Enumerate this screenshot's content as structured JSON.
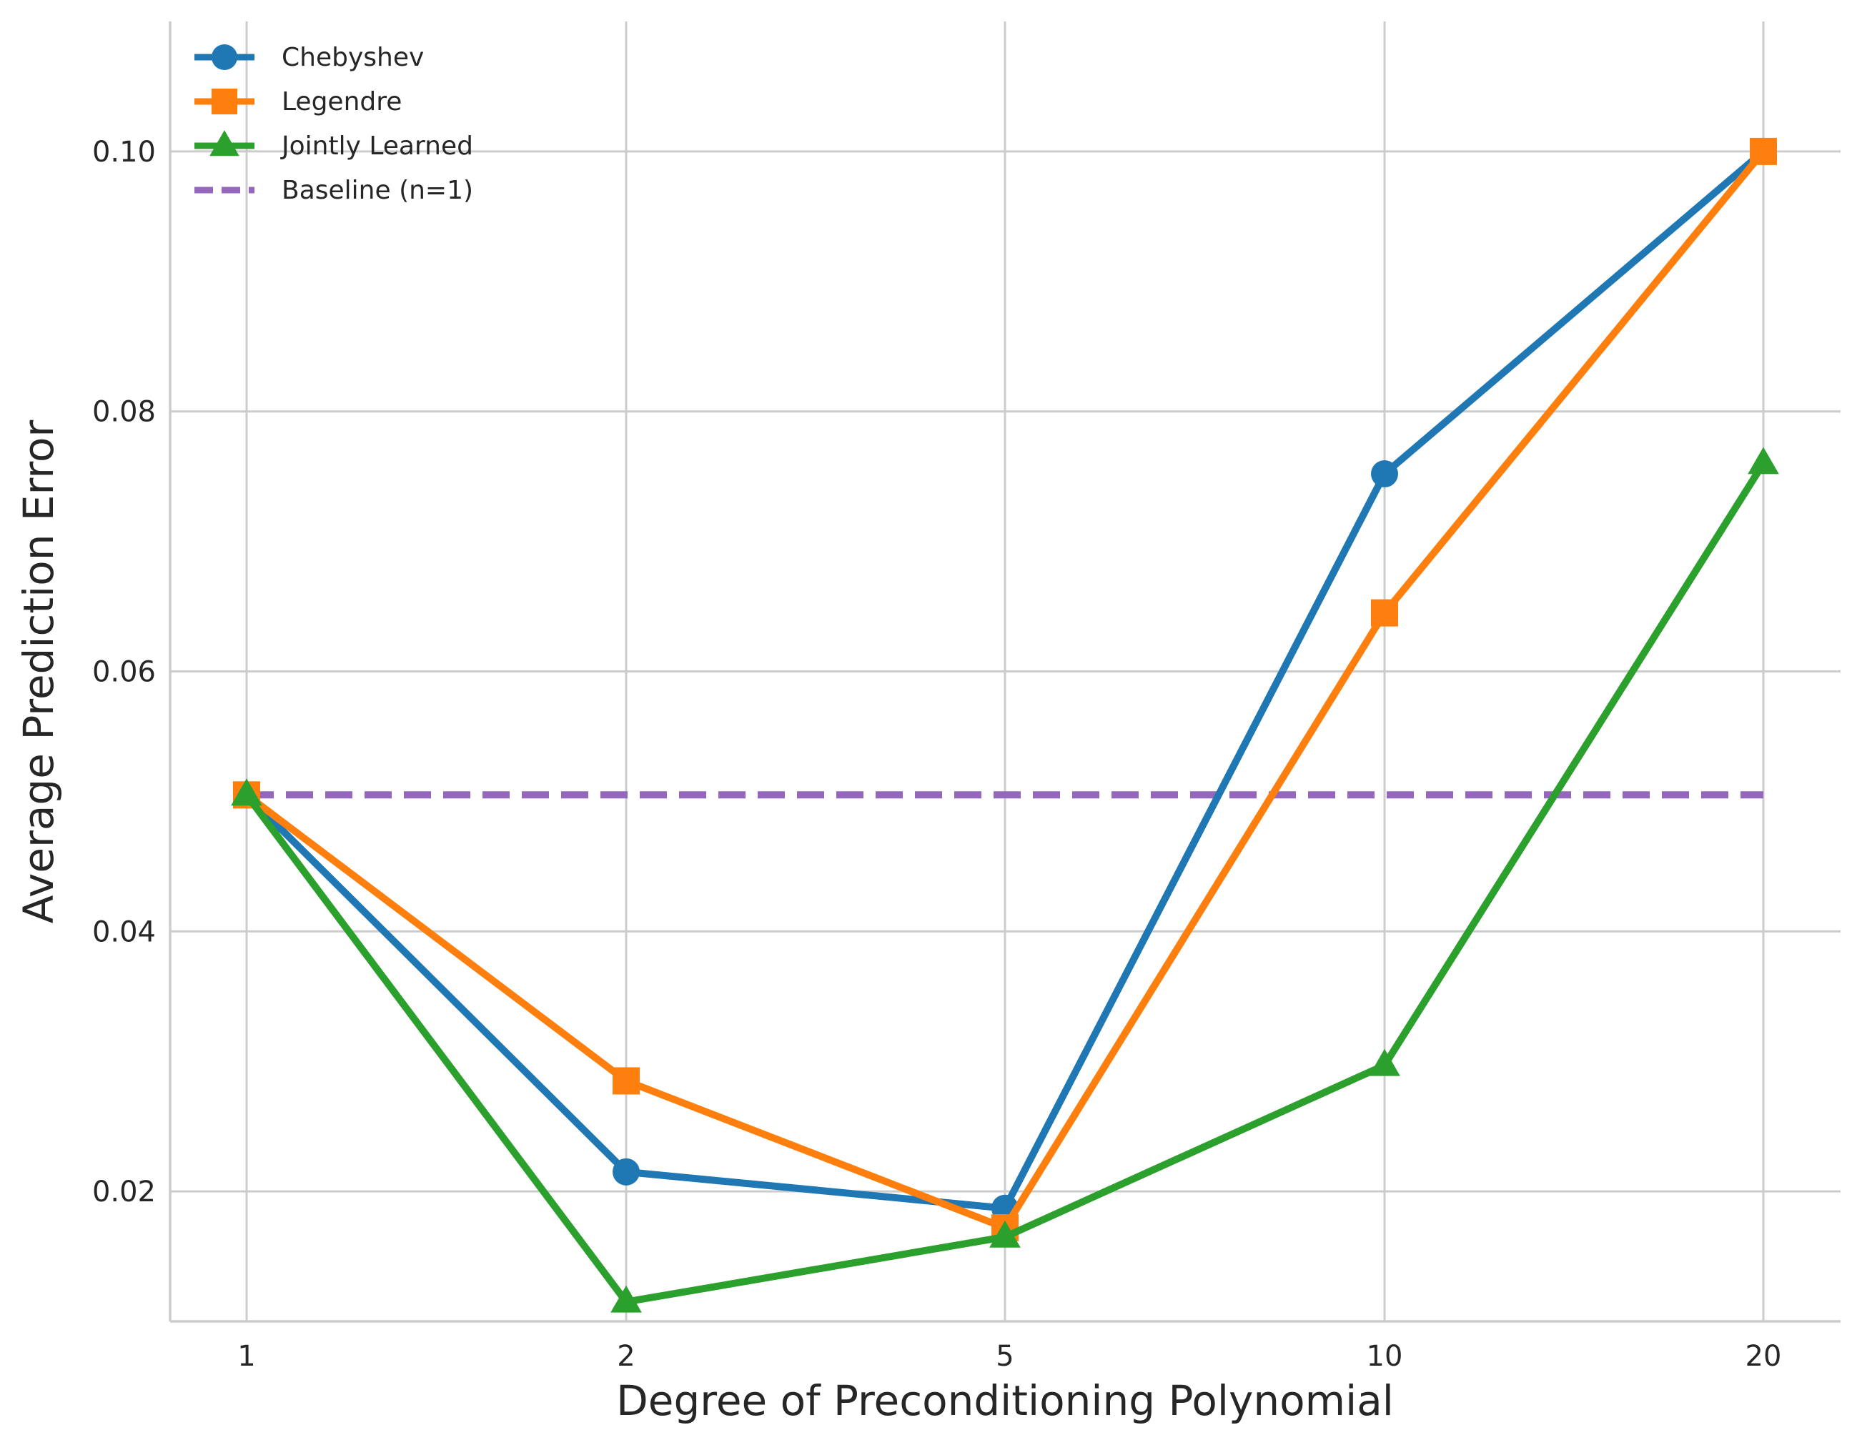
{
  "chart_data": {
    "type": "line",
    "title": "",
    "xlabel": "Degree of Preconditioning Polynomial",
    "ylabel": "Average Prediction Error",
    "categories": [
      "1",
      "2",
      "5",
      "10",
      "20"
    ],
    "ylim": [
      0.01,
      0.11
    ],
    "yticks": [
      0.02,
      0.04,
      0.06,
      0.08,
      0.1
    ],
    "ytick_labels": [
      "0.02",
      "0.04",
      "0.06",
      "0.08",
      "0.10"
    ],
    "grid": true,
    "legend_position": "top-left",
    "series": [
      {
        "name": "Chebyshev",
        "values": [
          0.0505,
          0.0215,
          0.0187,
          0.0752,
          0.1
        ],
        "color": "#1f77b4",
        "marker": "circle",
        "linestyle": "solid"
      },
      {
        "name": "Legendre",
        "values": [
          0.0505,
          0.0285,
          0.0172,
          0.0645,
          0.1
        ],
        "color": "#ff7f0e",
        "marker": "square",
        "linestyle": "solid"
      },
      {
        "name": "Jointly Learned",
        "values": [
          0.0505,
          0.0115,
          0.0165,
          0.0297,
          0.076
        ],
        "color": "#2ca02c",
        "marker": "triangle",
        "linestyle": "solid"
      },
      {
        "name": "Baseline (n=1)",
        "values": [
          0.0505,
          0.0505,
          0.0505,
          0.0505,
          0.0505
        ],
        "color": "#9467bd",
        "marker": "none",
        "linestyle": "dashed"
      }
    ]
  }
}
